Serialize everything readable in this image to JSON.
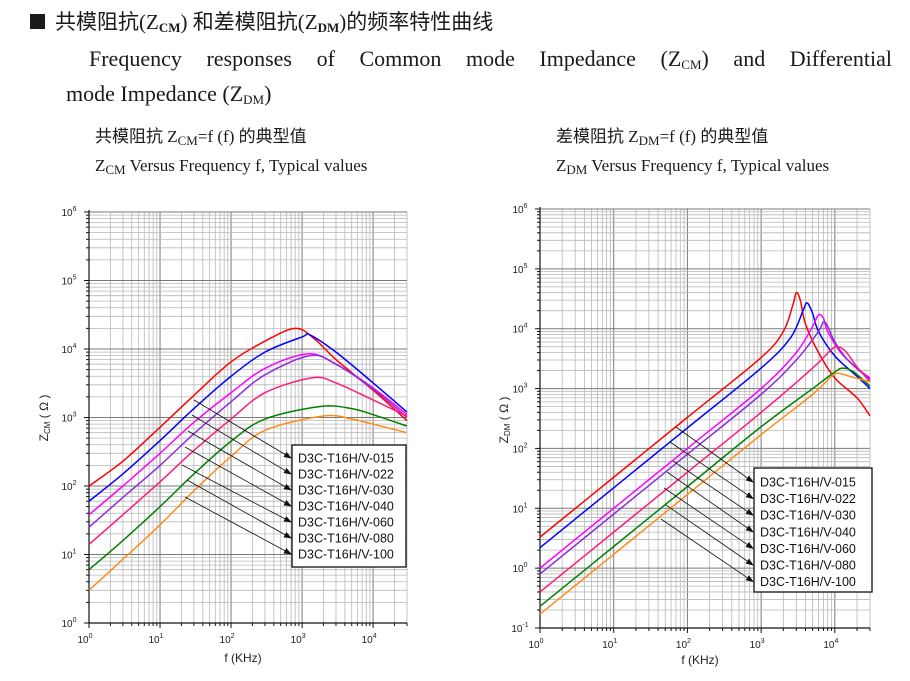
{
  "heading": {
    "prefix": "共模阻抗(Z",
    "sub1": "CM",
    "middle": ") 和差模阻抗(Z",
    "sub2": "DM",
    "suffix": ")的频率特性曲线"
  },
  "intro": {
    "line1_a": "Frequency responses of Common mode Impedance (Z",
    "line1_sub": "CM",
    "line1_b": ") and Differential",
    "line2_a": "mode Impedance (Z",
    "line2_sub": "DM",
    "line2_b": ")"
  },
  "colors": {
    "D3C-T16H/V-015": "#ff0000",
    "D3C-T16H/V-022": "#0000ff",
    "D3C-T16H/V-030": "#ff00ff",
    "D3C-T16H/V-040": "#8a2be2",
    "D3C-T16H/V-060": "#ff1a7a",
    "D3C-T16H/V-080": "#008000",
    "D3C-T16H/V-100": "#ff8c1a"
  },
  "chart_data": [
    {
      "type": "line",
      "id": "zcm",
      "title_cn_a": "共模阻抗 Z",
      "title_cn_sub": "CM",
      "title_cn_b": "=f (f)  的典型值",
      "title_en_a": "Z",
      "title_en_sub": "CM",
      "title_en_b": " Versus Frequency f, Typical values",
      "xlabel": "f (KHz)",
      "ylabel": "Z",
      "ylabel_sub": "CM",
      "ylabel_unit": " ( Ω )",
      "xscale": "log",
      "yscale": "log",
      "xlim": [
        1,
        30000
      ],
      "ylim": [
        1,
        1000000
      ],
      "xticks": [
        {
          "v": 1,
          "e": "0"
        },
        {
          "v": 10,
          "e": "1"
        },
        {
          "v": 100,
          "e": "2"
        },
        {
          "v": 1000,
          "e": "3"
        },
        {
          "v": 10000,
          "e": "4"
        }
      ],
      "yticks": [
        {
          "v": 1,
          "e": "0"
        },
        {
          "v": 10,
          "e": "1"
        },
        {
          "v": 100,
          "e": "2"
        },
        {
          "v": 1000,
          "e": "3"
        },
        {
          "v": 10000,
          "e": "4"
        },
        {
          "v": 100000,
          "e": "5"
        },
        {
          "v": 1000000,
          "e": "6"
        }
      ],
      "grid": true,
      "legend_position": "lower-right",
      "series": [
        {
          "name": "D3C-T16H/V-015",
          "x": [
            1,
            3,
            10,
            30,
            100,
            300,
            800,
            1500,
            3000,
            10000,
            30000
          ],
          "y": [
            100,
            230,
            720,
            2100,
            6500,
            13000,
            20000,
            14000,
            7000,
            2500,
            900
          ]
        },
        {
          "name": "D3C-T16H/V-022",
          "x": [
            1,
            3,
            10,
            30,
            100,
            300,
            1000,
            1300,
            3000,
            10000,
            30000
          ],
          "y": [
            60,
            150,
            460,
            1350,
            4000,
            9000,
            15000,
            16000,
            9000,
            3200,
            1200
          ]
        },
        {
          "name": "D3C-T16H/V-030",
          "x": [
            1,
            3,
            10,
            30,
            100,
            300,
            1200,
            3000,
            10000,
            30000
          ],
          "y": [
            38,
            100,
            300,
            850,
            2300,
            5200,
            8500,
            6000,
            2700,
            1100
          ]
        },
        {
          "name": "D3C-T16H/V-040",
          "x": [
            1,
            3,
            10,
            30,
            100,
            300,
            1300,
            3000,
            10000,
            30000
          ],
          "y": [
            25,
            68,
            200,
            580,
            1700,
            4200,
            8000,
            6000,
            2600,
            1000
          ]
        },
        {
          "name": "D3C-T16H/V-060",
          "x": [
            1,
            3,
            10,
            30,
            100,
            300,
            1400,
            3000,
            10000,
            30000
          ],
          "y": [
            14,
            38,
            115,
            330,
            950,
            2300,
            3800,
            3200,
            1800,
            1050
          ]
        },
        {
          "name": "D3C-T16H/V-080",
          "x": [
            1,
            3,
            10,
            30,
            100,
            300,
            1800,
            5000,
            10000,
            30000
          ],
          "y": [
            6,
            16,
            50,
            150,
            450,
            950,
            1450,
            1350,
            1100,
            750
          ]
        },
        {
          "name": "D3C-T16H/V-100",
          "x": [
            1,
            3,
            10,
            30,
            100,
            300,
            2000,
            5000,
            10000,
            30000
          ],
          "y": [
            3,
            8.5,
            27,
            85,
            270,
            650,
            1050,
            950,
            800,
            600
          ]
        }
      ]
    },
    {
      "type": "line",
      "id": "zdm",
      "title_cn_a": "差模阻抗 Z",
      "title_cn_sub": "DM",
      "title_cn_b": "=f (f)  的典型值",
      "title_en_a": "Z",
      "title_en_sub": "DM",
      "title_en_b": " Versus Frequency f, Typical values",
      "xlabel": "f (KHz)",
      "ylabel": "Z",
      "ylabel_sub": "DM",
      "ylabel_unit": " ( Ω )",
      "xscale": "log",
      "yscale": "log",
      "xlim": [
        1,
        30000
      ],
      "ylim": [
        0.1,
        1000000
      ],
      "xticks": [
        {
          "v": 1,
          "e": "0"
        },
        {
          "v": 10,
          "e": "1"
        },
        {
          "v": 100,
          "e": "2"
        },
        {
          "v": 1000,
          "e": "3"
        },
        {
          "v": 10000,
          "e": "4"
        }
      ],
      "yticks": [
        {
          "v": 0.1,
          "e": "-1"
        },
        {
          "v": 1,
          "e": "0"
        },
        {
          "v": 10,
          "e": "1"
        },
        {
          "v": 100,
          "e": "2"
        },
        {
          "v": 1000,
          "e": "3"
        },
        {
          "v": 10000,
          "e": "4"
        },
        {
          "v": 100000,
          "e": "5"
        },
        {
          "v": 1000000,
          "e": "6"
        }
      ],
      "grid": true,
      "legend_position": "lower-right",
      "series": [
        {
          "name": "D3C-T16H/V-015",
          "x": [
            1,
            10,
            100,
            1000,
            2000,
            2700,
            3000,
            3400,
            4000,
            6000,
            10000,
            20000,
            30000
          ],
          "y": [
            3.3,
            33,
            330,
            3300,
            9000,
            25000,
            40000,
            30000,
            12000,
            4000,
            1500,
            700,
            350
          ]
        },
        {
          "name": "D3C-T16H/V-022",
          "x": [
            1,
            10,
            100,
            1000,
            2500,
            3700,
            4200,
            5000,
            6000,
            10000,
            20000,
            30000
          ],
          "y": [
            2.2,
            22,
            220,
            2200,
            7000,
            20000,
            27000,
            18000,
            9000,
            3500,
            1600,
            1000
          ]
        },
        {
          "name": "D3C-T16H/V-030",
          "x": [
            1,
            10,
            100,
            1000,
            3000,
            5000,
            6000,
            7000,
            8000,
            12000,
            20000,
            30000
          ],
          "y": [
            1.0,
            10,
            100,
            1000,
            4000,
            11000,
            17000,
            15000,
            9000,
            4000,
            2200,
            1500
          ]
        },
        {
          "name": "D3C-T16H/V-040",
          "x": [
            1,
            10,
            100,
            1000,
            3000,
            6000,
            7000,
            8000,
            10000,
            15000,
            30000
          ],
          "y": [
            0.8,
            8,
            80,
            800,
            3000,
            9000,
            13000,
            11000,
            6000,
            3000,
            1400
          ]
        },
        {
          "name": "D3C-T16H/V-060",
          "x": [
            1,
            10,
            100,
            1000,
            5000,
            9000,
            11000,
            14000,
            20000,
            30000
          ],
          "y": [
            0.4,
            4,
            40,
            400,
            2200,
            4500,
            5000,
            4200,
            2300,
            1300
          ]
        },
        {
          "name": "D3C-T16H/V-080",
          "x": [
            1,
            10,
            100,
            1000,
            5000,
            10000,
            13000,
            18000,
            30000
          ],
          "y": [
            0.23,
            2.3,
            23,
            230,
            1000,
            1900,
            2200,
            1900,
            1100
          ]
        },
        {
          "name": "D3C-T16H/V-100",
          "x": [
            1,
            10,
            100,
            1000,
            5000,
            9000,
            11000,
            16000,
            30000
          ],
          "y": [
            0.17,
            1.7,
            17,
            170,
            800,
            1600,
            1800,
            1600,
            1300
          ]
        }
      ]
    }
  ]
}
